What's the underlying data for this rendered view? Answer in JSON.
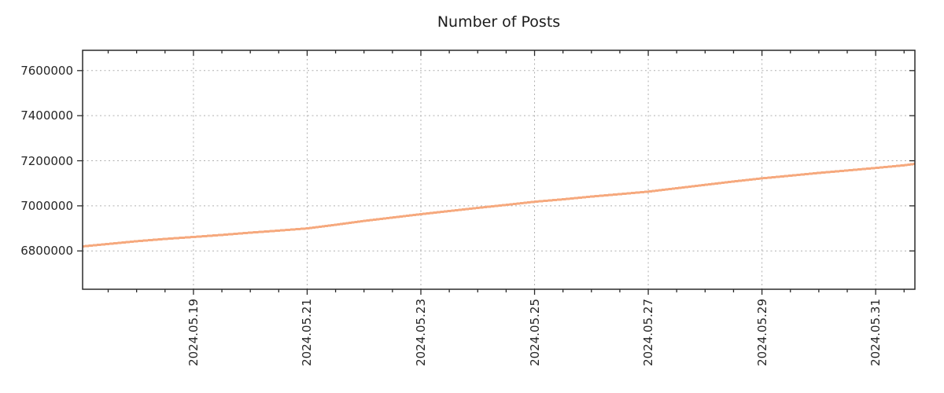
{
  "title": "Number of Posts",
  "colors": {
    "line": "#f6a97e",
    "grid": "#b0b0b0",
    "axis": "#2a2a2a",
    "text": "#262626",
    "background": "#ffffff"
  },
  "chart_data": {
    "type": "line",
    "title": "Number of Posts",
    "xlabel": "",
    "ylabel": "",
    "grid": true,
    "legend_position": "none",
    "x_unit": "day of 2024.05 (fractional)",
    "xlim": [
      17.05,
      31.69
    ],
    "ylim": [
      6630000,
      7690000
    ],
    "yticks": {
      "values": [
        6800000,
        7000000,
        7200000,
        7400000,
        7600000
      ],
      "labels": [
        "6800000",
        "7000000",
        "7200000",
        "7400000",
        "7600000"
      ]
    },
    "xticks": {
      "values": [
        19,
        21,
        23,
        25,
        27,
        29,
        31
      ],
      "labels": [
        "2024.05.19",
        "2024.05.21",
        "2024.05.23",
        "2024.05.25",
        "2024.05.27",
        "2024.05.29",
        "2024.05.31"
      ]
    },
    "x_minor_tick_interval": 0.5,
    "series": [
      {
        "name": "Number of Posts",
        "color": "#f6a97e",
        "x": [
          17.05,
          17.5,
          18.0,
          18.5,
          19.0,
          19.5,
          20.0,
          20.5,
          21.0,
          21.5,
          22.0,
          22.5,
          23.0,
          23.5,
          24.0,
          24.5,
          25.0,
          25.5,
          26.0,
          26.5,
          27.0,
          27.5,
          28.0,
          28.5,
          29.0,
          29.5,
          30.0,
          30.5,
          31.0,
          31.5,
          31.69
        ],
        "y": [
          6820000,
          6831000,
          6843000,
          6853000,
          6862000,
          6871000,
          6881000,
          6890000,
          6900000,
          6916000,
          6933000,
          6948000,
          6963000,
          6977000,
          6991000,
          7004000,
          7018000,
          7029000,
          7041000,
          7052000,
          7063000,
          7078000,
          7093000,
          7108000,
          7122000,
          7134000,
          7146000,
          7157000,
          7168000,
          7180000,
          7186000
        ]
      }
    ]
  }
}
